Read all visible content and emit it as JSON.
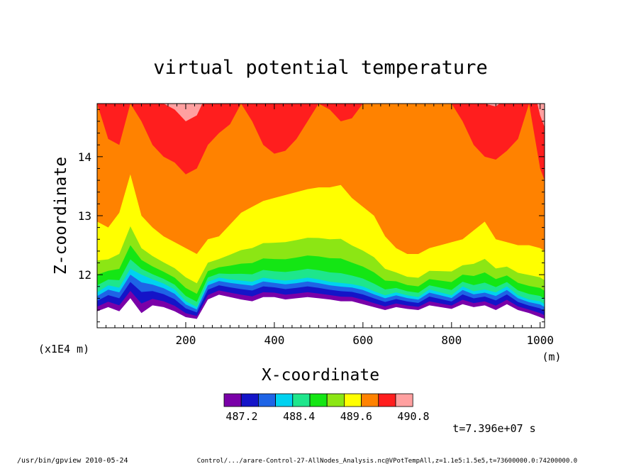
{
  "chart_data": {
    "type": "heatmap",
    "title": "virtual potential temperature",
    "xlabel": "X-coordinate",
    "x_units": "(m)",
    "ylabel": "Z-coordinate",
    "y_scale_note": "(x1E4 m)",
    "x_range": [
      0,
      1010
    ],
    "y_range": [
      11.1,
      14.9
    ],
    "x_ticks": [
      {
        "value": 200,
        "label": "200"
      },
      {
        "value": 400,
        "label": "400"
      },
      {
        "value": 600,
        "label": "600"
      },
      {
        "value": 800,
        "label": "800"
      },
      {
        "value": 1000,
        "label": "1000"
      }
    ],
    "y_ticks": [
      {
        "value": 12,
        "label": "12"
      },
      {
        "value": 13,
        "label": "13"
      },
      {
        "value": 14,
        "label": "14"
      }
    ],
    "levels": [
      487.2,
      487.5,
      487.8,
      488.1,
      488.4,
      488.7,
      489.0,
      489.3,
      489.6,
      489.9,
      490.2,
      490.5,
      490.8
    ],
    "level_labels": [
      {
        "level_index": 0,
        "label": "487.2"
      },
      {
        "level_index": 4,
        "label": "488.4"
      },
      {
        "level_index": 8,
        "label": "489.6"
      },
      {
        "level_index": 12,
        "label": "490.8"
      }
    ],
    "colors": [
      "#7a00a8",
      "#1414c8",
      "#1e64e6",
      "#00d2f0",
      "#1ee68c",
      "#14e614",
      "#8ce614",
      "#ffff00",
      "#ff8200",
      "#ff1e1e",
      "#ffa0a0"
    ],
    "mask_color": "#ffffff",
    "boundary_level_heights": {
      "x": [
        0,
        25,
        50,
        75,
        100,
        125,
        150,
        175,
        200,
        225,
        250,
        275,
        300,
        325,
        350,
        375,
        400,
        425,
        450,
        475,
        500,
        525,
        550,
        575,
        600,
        625,
        650,
        675,
        700,
        725,
        750,
        775,
        800,
        825,
        850,
        875,
        900,
        925,
        950,
        975,
        1000,
        1010
      ],
      "lowest": [
        11.38,
        11.45,
        11.38,
        11.6,
        11.35,
        11.48,
        11.45,
        11.38,
        11.28,
        11.25,
        11.58,
        11.66,
        11.62,
        11.58,
        11.55,
        11.62,
        11.62,
        11.58,
        11.6,
        11.62,
        11.6,
        11.58,
        11.55,
        11.55,
        11.5,
        11.45,
        11.4,
        11.45,
        11.42,
        11.4,
        11.48,
        11.45,
        11.42,
        11.5,
        11.45,
        11.48,
        11.4,
        11.5,
        11.4,
        11.35,
        11.28,
        11.25
      ],
      "mid": [
        11.7,
        11.82,
        11.78,
        12.1,
        12.0,
        11.92,
        11.85,
        11.75,
        11.55,
        11.45,
        11.88,
        11.95,
        11.92,
        11.9,
        11.88,
        11.95,
        11.92,
        11.9,
        11.92,
        11.95,
        11.92,
        11.88,
        11.86,
        11.84,
        11.8,
        11.72,
        11.65,
        11.7,
        11.65,
        11.62,
        11.75,
        11.7,
        11.65,
        11.8,
        11.72,
        11.75,
        11.7,
        11.8,
        11.65,
        11.58,
        11.55,
        11.5
      ],
      "orange_base": [
        12.9,
        12.8,
        13.05,
        13.7,
        13.0,
        12.8,
        12.65,
        12.55,
        12.45,
        12.35,
        12.6,
        12.65,
        12.85,
        13.05,
        13.15,
        13.25,
        13.3,
        13.35,
        13.4,
        13.45,
        13.48,
        13.48,
        13.52,
        13.3,
        13.15,
        13.0,
        12.65,
        12.45,
        12.35,
        12.35,
        12.45,
        12.5,
        12.55,
        12.6,
        12.75,
        12.9,
        12.6,
        12.55,
        12.5,
        12.5,
        12.45,
        12.4
      ],
      "red_base": [
        14.9,
        14.3,
        14.2,
        14.9,
        14.6,
        14.2,
        14.0,
        13.9,
        13.7,
        13.8,
        14.2,
        14.4,
        14.55,
        14.9,
        14.6,
        14.2,
        14.05,
        14.1,
        14.3,
        14.6,
        14.9,
        14.8,
        14.6,
        14.65,
        14.9,
        14.9,
        14.9,
        14.9,
        14.9,
        14.9,
        14.9,
        14.9,
        14.9,
        14.6,
        14.2,
        14.0,
        13.95,
        14.1,
        14.3,
        14.9,
        13.8,
        13.6
      ]
    }
  },
  "time_label": "t=7.396e+07 s",
  "footer": {
    "left": "/usr/bin/gpview  2010-05-24",
    "right": "Control/.../arare-Control-27-AllNodes_Analysis.nc@VPotTempAll,z=1.1e5:1.5e5,t=73600000.0:74200000.0"
  }
}
